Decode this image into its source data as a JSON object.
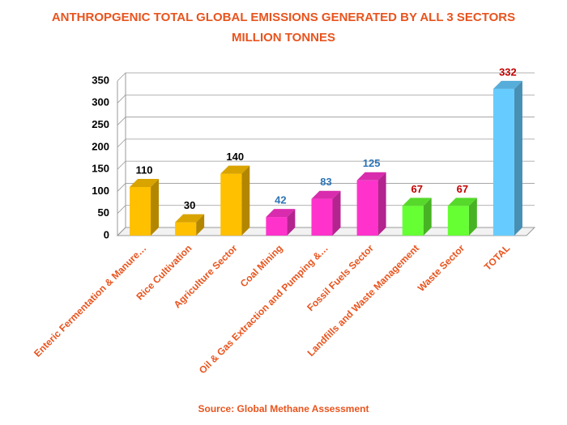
{
  "chart_data": {
    "type": "bar3d",
    "title": [
      "ANTHROPGENIC TOTAL GLOBAL EMISSIONS GENERATED BY ALL 3 SECTORS",
      "MILLION TONNES"
    ],
    "source": "Source: Global Methane Assessment",
    "categories": [
      "Enteric Fermentation & Manure…",
      "Rice Cultivation",
      "Agriculture Sector",
      "Coal Mining",
      "Oil & Gas Extraction and Pumping &…",
      "Fossil Fuels Sector",
      "Landfills and Waste Management",
      "Waste Sector",
      "TOTAL"
    ],
    "values": [
      110,
      30,
      140,
      42,
      83,
      125,
      67,
      67,
      332
    ],
    "colors": [
      "#FFC000",
      "#FFC000",
      "#FFC000",
      "#FF33CC",
      "#FF33CC",
      "#FF33CC",
      "#66FF33",
      "#66FF33",
      "#66CCFF"
    ],
    "label_colors": [
      "#000000",
      "#000000",
      "#000000",
      "#2E75B6",
      "#2E75B6",
      "#2E75B6",
      "#C00000",
      "#C00000",
      "#C00000"
    ],
    "ylim": [
      0,
      350
    ],
    "yticks": [
      0,
      50,
      100,
      150,
      200,
      250,
      300,
      350
    ],
    "grid": true
  }
}
